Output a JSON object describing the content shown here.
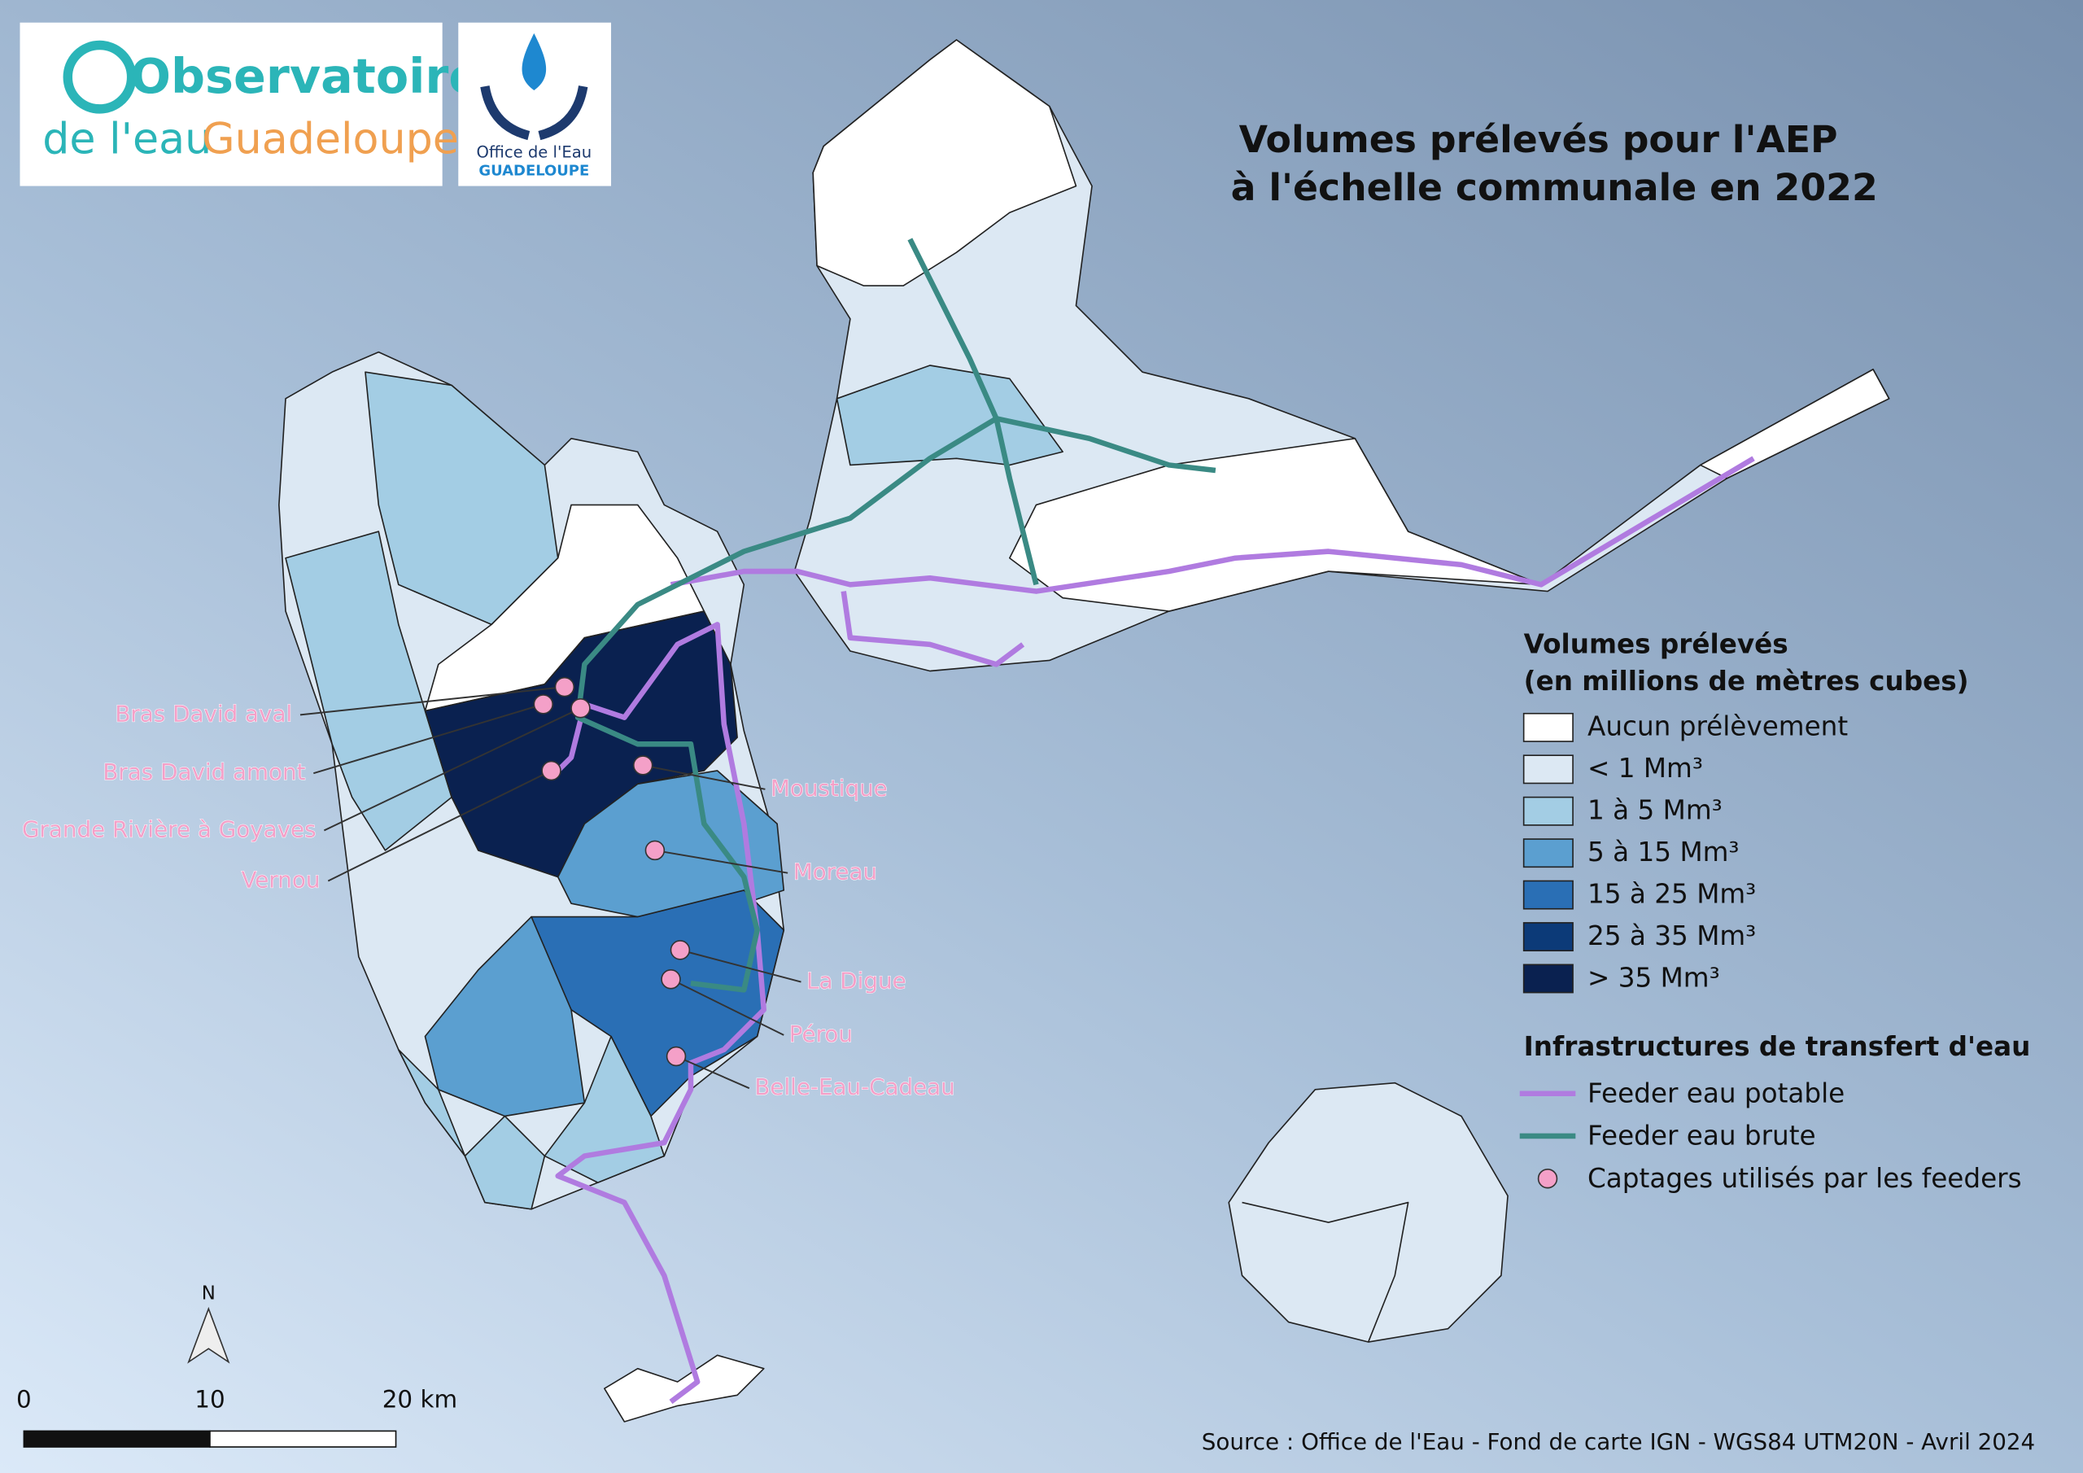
{
  "logos": {
    "observatoire": {
      "word": "Observatoire",
      "line2a": "de l'eau",
      "line2b": "Guadeloupe"
    },
    "office": {
      "line1": "Office de l'Eau",
      "line2": "GUADELOUPE"
    }
  },
  "title": [
    "Volumes prélevés pour l'AEP",
    "à l'échelle communale en 2022"
  ],
  "legend": {
    "title": [
      "Volumes prélevés",
      "(en millions de mètres cubes)"
    ],
    "classes": [
      {
        "label": "Aucun prélèvement",
        "color": "#ffffff"
      },
      {
        "label": "< 1 Mm³",
        "color": "#dce8f3"
      },
      {
        "label": "1 à 5 Mm³",
        "color": "#a3cde4"
      },
      {
        "label": "5 à 15 Mm³",
        "color": "#5b9fd0"
      },
      {
        "label": "15 à 25 Mm³",
        "color": "#2a6fb5"
      },
      {
        "label": "25 à 35 Mm³",
        "color": "#0c3a78"
      },
      {
        "label": "> 35 Mm³",
        "color": "#0a2150"
      }
    ],
    "infra_title": "Infrastructures de transfert d'eau",
    "infra": [
      {
        "label": "Feeder eau potable",
        "color": "#b07be0",
        "kind": "line"
      },
      {
        "label": "Feeder eau brute",
        "color": "#3a8a84",
        "kind": "line"
      },
      {
        "label": "Captages utilisés par les feeders",
        "color": "#f4a0c8",
        "kind": "point"
      }
    ]
  },
  "captages": [
    "Bras David aval",
    "Bras David amont",
    "Grande Rivière à Goyaves",
    "Vernou",
    "Moustique",
    "Moreau",
    "La Digue",
    "Pérou",
    "Belle-Eau-Cadeau"
  ],
  "north": "N",
  "scale": [
    "0",
    "10",
    "20 km"
  ],
  "source": "Source : Office de l'Eau - Fond de carte IGN - WGS84 UTM20N - Avril 2024"
}
